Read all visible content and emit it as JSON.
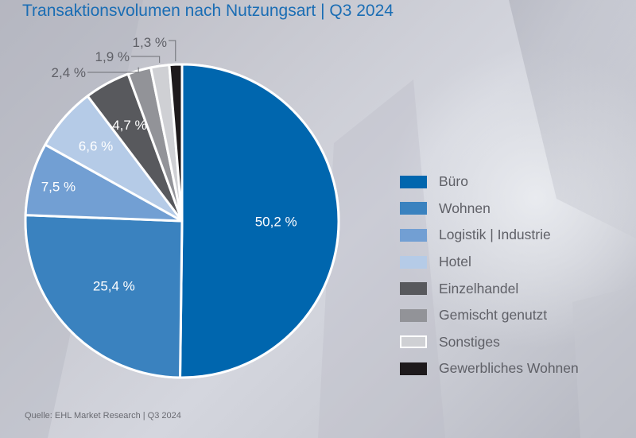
{
  "chart_data": {
    "type": "pie",
    "title": "Transaktionsvolumen nach Nutzungsart | Q3 2024",
    "source": "Quelle: EHL Market Research | Q3 2024",
    "start": "12 o'clock",
    "direction": "clockwise",
    "legend_position": "right",
    "slices": [
      {
        "label": "Büro",
        "value": 50.2,
        "value_label": "50,2 %",
        "color": "#0066ae",
        "label_color": "#ffffff",
        "label_inside": true
      },
      {
        "label": "Wohnen",
        "value": 25.4,
        "value_label": "25,4 %",
        "color": "#3a82bf",
        "label_color": "#ffffff",
        "label_inside": true
      },
      {
        "label": "Logistik | Industrie",
        "value": 7.5,
        "value_label": "7,5 %",
        "color": "#729fd3",
        "label_color": "#ffffff",
        "label_inside": true
      },
      {
        "label": "Hotel",
        "value": 6.6,
        "value_label": "6,6 %",
        "color": "#b5cbe7",
        "label_color": "#ffffff",
        "label_inside": true
      },
      {
        "label": "Einzelhandel",
        "value": 4.7,
        "value_label": "4,7 %",
        "color": "#58595d",
        "label_color": "#ffffff",
        "label_inside": true
      },
      {
        "label": "Gemischt genutzt",
        "value": 2.4,
        "value_label": "2,4 %",
        "color": "#929398",
        "label_color": "#5f6067",
        "label_inside": false
      },
      {
        "label": "Sonstiges",
        "value": 1.9,
        "value_label": "1,9 %",
        "color": "#cfd0d4",
        "label_color": "#5f6067",
        "label_inside": false
      },
      {
        "label": "Gewerbliches Wohnen",
        "value": 1.3,
        "value_label": "1,3 %",
        "color": "#1e1a1c",
        "label_color": "#5f6067",
        "label_inside": false
      }
    ]
  }
}
